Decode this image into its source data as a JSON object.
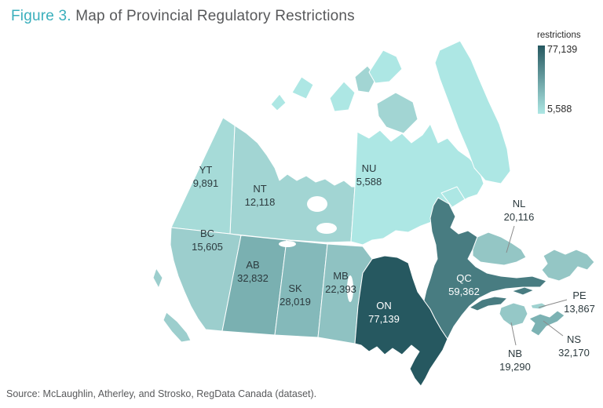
{
  "title": {
    "figure_label": "Figure 3.",
    "text": " Map of Provincial Regulatory Restrictions"
  },
  "legend": {
    "title": "restrictions",
    "max_label": "77,139",
    "min_label": "5,588",
    "max_color": "#265860",
    "min_color": "#ade7e4"
  },
  "source": "Source: McLaughlin, Atherley, and Strosko, RegData Canada (dataset).",
  "chart_data": {
    "type": "choropleth",
    "region": "Canada",
    "title": "Figure 3. Map of Provincial Regulatory Restrictions",
    "legend_label": "restrictions",
    "value_range": [
      5588,
      77139
    ],
    "legend_position": "top-right",
    "provinces": [
      {
        "code": "NU",
        "value": 5588,
        "display": "5,588",
        "color": "#ade7e4",
        "label_color": "#2c3a3e"
      },
      {
        "code": "YT",
        "value": 9891,
        "display": "9,891",
        "color": "#a6dbd8",
        "label_color": "#2c3a3e"
      },
      {
        "code": "NT",
        "value": 12118,
        "display": "12,118",
        "color": "#a2d5d3",
        "label_color": "#2c3a3e"
      },
      {
        "code": "PE",
        "value": 13867,
        "display": "13,867",
        "color": "#9fd2d0",
        "label_color": "#2c3a3e"
      },
      {
        "code": "BC",
        "value": 15605,
        "display": "15,605",
        "color": "#9ccecd",
        "label_color": "#2c3a3e"
      },
      {
        "code": "NB",
        "value": 19290,
        "display": "19,290",
        "color": "#95c8c7",
        "label_color": "#2c3a3e"
      },
      {
        "code": "NL",
        "value": 20116,
        "display": "20,116",
        "color": "#94c6c5",
        "label_color": "#2c3a3e"
      },
      {
        "code": "MB",
        "value": 22393,
        "display": "22,393",
        "color": "#8fc2c2",
        "label_color": "#2c3a3e"
      },
      {
        "code": "SK",
        "value": 28019,
        "display": "28,019",
        "color": "#84b9ba",
        "label_color": "#2c3a3e"
      },
      {
        "code": "NS",
        "value": 32170,
        "display": "32,170",
        "color": "#7cb2b3",
        "label_color": "#2c3a3e"
      },
      {
        "code": "AB",
        "value": 32832,
        "display": "32,832",
        "color": "#7ab0b1",
        "label_color": "#2c3a3e"
      },
      {
        "code": "QC",
        "value": 59362,
        "display": "59,362",
        "color": "#487c81",
        "label_color": "#ffffff"
      },
      {
        "code": "ON",
        "value": 77139,
        "display": "77,139",
        "color": "#265860",
        "label_color": "#ffffff"
      }
    ]
  }
}
